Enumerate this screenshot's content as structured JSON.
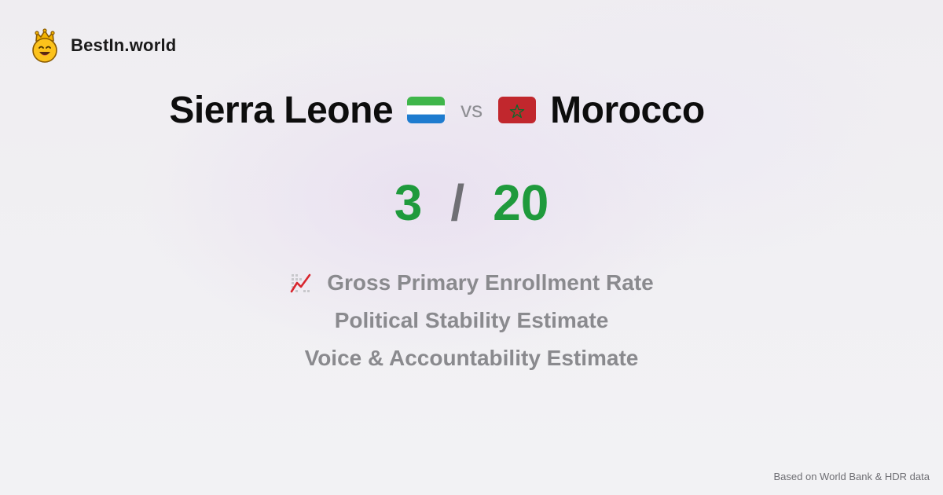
{
  "brand": {
    "name": "BestIn.world",
    "logo_icon": "crown-smiley-icon"
  },
  "comparison": {
    "left_country": "Sierra Leone",
    "left_flag_icon": "sierra-leone-flag-icon",
    "vs_label": "vs",
    "right_country": "Morocco",
    "right_flag_icon": "morocco-flag-icon"
  },
  "score": {
    "left": "3",
    "separator": "/",
    "right": "20",
    "color": "#1f9a3c"
  },
  "metrics": [
    {
      "icon": "chart-increasing-icon",
      "label": "Gross Primary Enrollment Rate"
    },
    {
      "label": "Political Stability Estimate"
    },
    {
      "label": "Voice & Accountability Estimate"
    }
  ],
  "footer": {
    "source": "Based on World Bank & HDR data"
  }
}
